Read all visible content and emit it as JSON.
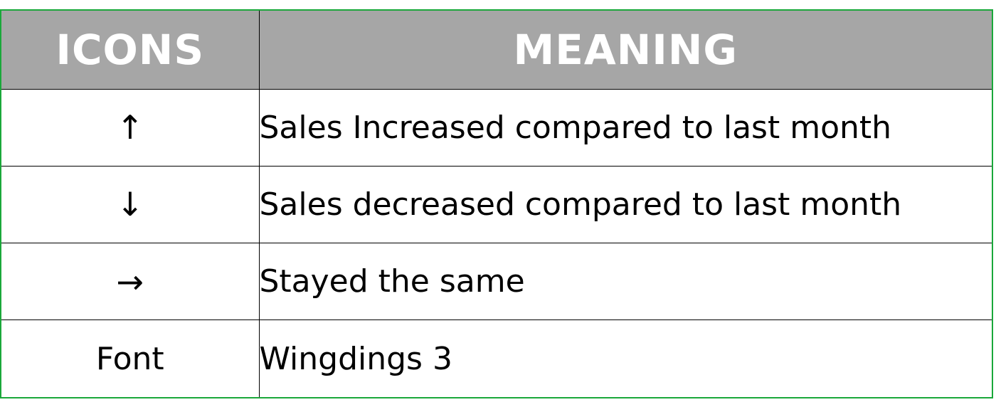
{
  "table": {
    "headers": {
      "icons": "ICONS",
      "meaning": "MEANING"
    },
    "rows": [
      {
        "icon": "↑",
        "icon_name": "arrow-up-icon",
        "meaning": "Sales Increased compared to last month"
      },
      {
        "icon": "↓",
        "icon_name": "arrow-down-icon",
        "meaning": "Sales decreased compared to last month"
      },
      {
        "icon": "→",
        "icon_name": "arrow-right-icon",
        "meaning": "Stayed the same"
      },
      {
        "icon": "Font",
        "meaning": "Wingdings 3"
      }
    ]
  },
  "colors": {
    "header_bg": "#a6a6a6",
    "header_text": "#ffffff",
    "border_outer": "#1aa83a",
    "grid_line": "#000000"
  }
}
